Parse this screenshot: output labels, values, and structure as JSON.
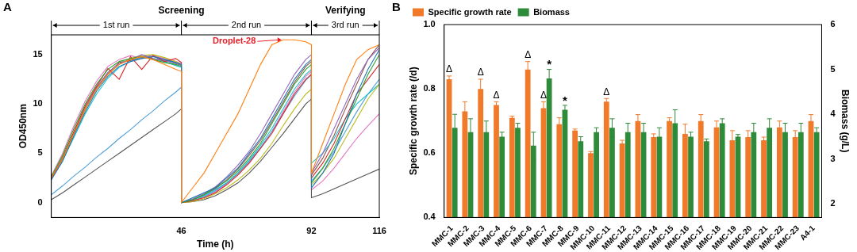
{
  "chart_data": [
    {
      "type": "line",
      "title": "A",
      "x_label": "Time (h)",
      "y_label": "OD450nm",
      "xlim": [
        0,
        116
      ],
      "xticks": [
        46,
        92,
        116
      ],
      "ylim": [
        -1.5,
        17
      ],
      "yticks": [
        0,
        5,
        10,
        15
      ],
      "grid": false,
      "phases": [
        {
          "text": "Screening",
          "x_range": [
            0,
            92
          ]
        },
        {
          "text": "Verifying",
          "x_range": [
            92,
            116
          ]
        }
      ],
      "runs": [
        {
          "text": "1st run",
          "x_range": [
            0,
            46
          ]
        },
        {
          "text": "2nd run",
          "x_range": [
            46,
            92
          ]
        },
        {
          "text": "3rd run",
          "x_range": [
            92,
            116
          ]
        }
      ],
      "x": [
        0,
        4,
        8,
        12,
        16,
        20,
        24,
        28,
        32,
        36,
        40,
        44,
        46,
        46,
        50,
        54,
        58,
        62,
        66,
        70,
        74,
        78,
        82,
        86,
        90,
        92,
        92,
        96,
        100,
        104,
        108,
        112,
        116
      ],
      "series": [
        {
          "name": "Droplet-28",
          "color": "#ff7f0e",
          "values": [
            2.5,
            4.5,
            7,
            9.5,
            11.5,
            13,
            14,
            14.5,
            14.8,
            14.5,
            14,
            13.5,
            13.3,
            0,
            1.5,
            3,
            5,
            7,
            9,
            11.5,
            14,
            16,
            16.5,
            16.5,
            16.3,
            16,
            3,
            6,
            9,
            12,
            14.5,
            15.5,
            16
          ]
        },
        {
          "color": "#1f77b4",
          "values": [
            2.3,
            4.2,
            6.8,
            9.2,
            11.3,
            12.8,
            13.8,
            14.3,
            14.6,
            14.8,
            14.5,
            14.2,
            14,
            0,
            0.5,
            1,
            1.5,
            2.5,
            3.5,
            5,
            6.5,
            8.5,
            10.5,
            12.5,
            14,
            14.5,
            1.5,
            3,
            5,
            8,
            11,
            13.5,
            15.5
          ]
        },
        {
          "color": "#2ca02c",
          "values": [
            2.6,
            4.8,
            7.5,
            10,
            12,
            13.5,
            14.3,
            14.6,
            14.8,
            14.5,
            14.2,
            14,
            13.8,
            0,
            0.3,
            0.8,
            1.5,
            2.2,
            3.2,
            4.5,
            6,
            8,
            10,
            12,
            13.5,
            14,
            2,
            3.5,
            5.5,
            8,
            10.5,
            13,
            15
          ]
        },
        {
          "color": "#d62728",
          "values": [
            2.4,
            4.5,
            7.2,
            9.8,
            11.8,
            13.6,
            12.5,
            14.8,
            13.5,
            14.9,
            14.3,
            14.6,
            14.2,
            0,
            0.2,
            0.5,
            1,
            1.8,
            2.8,
            4,
            5.5,
            7,
            9,
            11,
            12.5,
            13,
            2.5,
            4,
            6,
            8.5,
            11,
            12.5,
            14
          ]
        },
        {
          "color": "#9467bd",
          "values": [
            2.5,
            4.6,
            7,
            9.6,
            11.7,
            13.2,
            14.1,
            14.5,
            15,
            14.6,
            14.4,
            14.1,
            13.9,
            0,
            0.4,
            0.9,
            1.6,
            2.6,
            3.8,
            5.2,
            7,
            9,
            11,
            13,
            14.5,
            15,
            3,
            5,
            7.5,
            10,
            12.5,
            14.5,
            15.7
          ]
        },
        {
          "color": "#bcbd22",
          "values": [
            2.5,
            4.4,
            6.9,
            9.4,
            11.5,
            13,
            14,
            14.6,
            14.9,
            15,
            14.7,
            14.3,
            14,
            0,
            0.1,
            0.4,
            0.9,
            1.5,
            2.3,
            3.3,
            4.5,
            6,
            7.8,
            9.5,
            11,
            11.5,
            1.8,
            3,
            4.5,
            6.5,
            8.5,
            10.5,
            12
          ]
        },
        {
          "color": "#17becf",
          "values": [
            2.4,
            4.3,
            6.6,
            9,
            11,
            12.6,
            13.7,
            14.3,
            14.8,
            14.6,
            14.3,
            13.9,
            13.7,
            0,
            0.3,
            0.7,
            1.3,
            2,
            3,
            4.3,
            5.8,
            7.5,
            9.5,
            11.5,
            13,
            13.5,
            4,
            5,
            6.5,
            8.5,
            10,
            11,
            12
          ]
        },
        {
          "color": "#4f9fd8",
          "values": [
            0.8,
            1.7,
            2.7,
            3.6,
            4.6,
            5.5,
            6.5,
            7.4,
            8.4,
            9.3,
            10.3,
            11.2,
            11.7,
            0,
            0.2,
            0.6,
            1.2,
            2,
            3,
            4.2,
            5.6,
            7.2,
            9,
            10.8,
            12.4,
            13,
            2.2,
            3.5,
            5.2,
            7.2,
            9.2,
            11,
            12.5
          ]
        },
        {
          "color": "#555555",
          "values": [
            0.3,
            1,
            1.8,
            2.6,
            3.4,
            4.2,
            5,
            5.8,
            6.6,
            7.4,
            8.2,
            9,
            9.5,
            0,
            0.1,
            0.3,
            0.7,
            1.3,
            2,
            3,
            4.2,
            5.6,
            7,
            8.5,
            10,
            10.5,
            0.5,
            0.9,
            1.4,
            1.9,
            2.4,
            2.9,
            3.4
          ]
        },
        {
          "color": "#e377c2",
          "values": [
            2.7,
            5,
            7.8,
            10.3,
            12.3,
            13.8,
            14.5,
            14.9,
            14.6,
            14.9,
            14.6,
            14.3,
            14.1,
            0,
            0.2,
            0.6,
            1.1,
            1.9,
            2.9,
            4.1,
            5.5,
            7.2,
            9.2,
            11.2,
            12.8,
            13.3,
            1.3,
            2.2,
            3.5,
            5,
            6.5,
            7.8,
            9
          ]
        },
        {
          "color": "#8c564b",
          "values": [
            2.5,
            4.6,
            7.1,
            9.5,
            11.6,
            13.1,
            14.2,
            14.4,
            14.7,
            14.9,
            14.5,
            14.2,
            14,
            0,
            0.3,
            0.8,
            1.4,
            2.3,
            3.4,
            4.8,
            6.3,
            8.2,
            10.2,
            12.2,
            13.8,
            14.3,
            2.8,
            4.5,
            6.8,
            9.5,
            12,
            14.5,
            16
          ]
        }
      ]
    },
    {
      "type": "bar",
      "title": "B",
      "y_label": "Specific growth rate (/d)",
      "y2_label": "Biomass (g/L)",
      "ylim": [
        0.4,
        1.0
      ],
      "yticks": [
        {
          "value": 0.4,
          "label": "0.4"
        },
        {
          "value": 0.6,
          "label": "0.6"
        },
        {
          "value": 0.8,
          "label": "0.8"
        },
        {
          "value": 1.0,
          "label": "1.0"
        }
      ],
      "y2lim": [
        1.7,
        6
      ],
      "y2ticks": [
        2,
        3,
        4,
        5,
        6
      ],
      "grid": false,
      "legend": "upper left",
      "categories": [
        "MMC-1",
        "MMC-2",
        "MMC-3",
        "MMC-4",
        "MMC-5",
        "MMC-6",
        "MMC-7",
        "MMC-8",
        "MMC-9",
        "MMC-10",
        "MMC-11",
        "MMC-12",
        "MMC-13",
        "MMC-14",
        "MMC-15",
        "MMC-16",
        "MMC-17",
        "MMC-18",
        "MMC-19",
        "MMC-20",
        "MMC-21",
        "MMC-22",
        "MMC-23",
        "A4-1"
      ],
      "series": [
        {
          "name": "Specific growth rate",
          "color": "#f07a2a",
          "values": [
            0.83,
            0.73,
            0.8,
            0.75,
            0.71,
            0.86,
            0.74,
            0.69,
            0.67,
            0.6,
            0.76,
            0.63,
            0.7,
            0.65,
            0.7,
            0.66,
            0.7,
            0.68,
            0.64,
            0.65,
            0.64,
            0.68,
            0.65,
            0.7
          ],
          "errors": [
            0.01,
            0.03,
            0.03,
            0.01,
            0.005,
            0.025,
            0.02,
            0.02,
            0.005,
            0.005,
            0.01,
            0.01,
            0.02,
            0.01,
            0.01,
            0.03,
            0.02,
            0.02,
            0.03,
            0.02,
            0.01,
            0.02,
            0.02,
            0.02
          ]
        },
        {
          "name": "Biomass",
          "color": "#2e8b3a",
          "axis": "y2",
          "values": [
            3.7,
            3.6,
            3.6,
            3.5,
            3.7,
            3.3,
            4.8,
            4.1,
            3.4,
            3.6,
            3.7,
            3.6,
            3.6,
            3.5,
            3.8,
            3.5,
            3.4,
            3.8,
            3.5,
            3.6,
            3.7,
            3.6,
            3.6,
            3.6
          ],
          "errors": [
            0.3,
            0.3,
            0.25,
            0.1,
            0.1,
            0.3,
            0.2,
            0.1,
            0.1,
            0.1,
            0.2,
            0.2,
            0.2,
            0.2,
            0.3,
            0.1,
            0.05,
            0.1,
            0.05,
            0.2,
            0.2,
            0.2,
            0.2,
            0.1
          ]
        }
      ],
      "annotations": [
        {
          "category": "MMC-1",
          "series": "Specific growth rate",
          "text": "Δ"
        },
        {
          "category": "MMC-3",
          "series": "Specific growth rate",
          "text": "Δ"
        },
        {
          "category": "MMC-4",
          "series": "Specific growth rate",
          "text": "Δ"
        },
        {
          "category": "MMC-6",
          "series": "Specific growth rate",
          "text": "Δ"
        },
        {
          "category": "MMC-7",
          "series": "Specific growth rate",
          "text": "Δ"
        },
        {
          "category": "MMC-11",
          "series": "Specific growth rate",
          "text": "Δ"
        },
        {
          "category": "MMC-7",
          "series": "Biomass",
          "text": "*"
        },
        {
          "category": "MMC-8",
          "series": "Biomass",
          "text": "*"
        }
      ]
    }
  ]
}
